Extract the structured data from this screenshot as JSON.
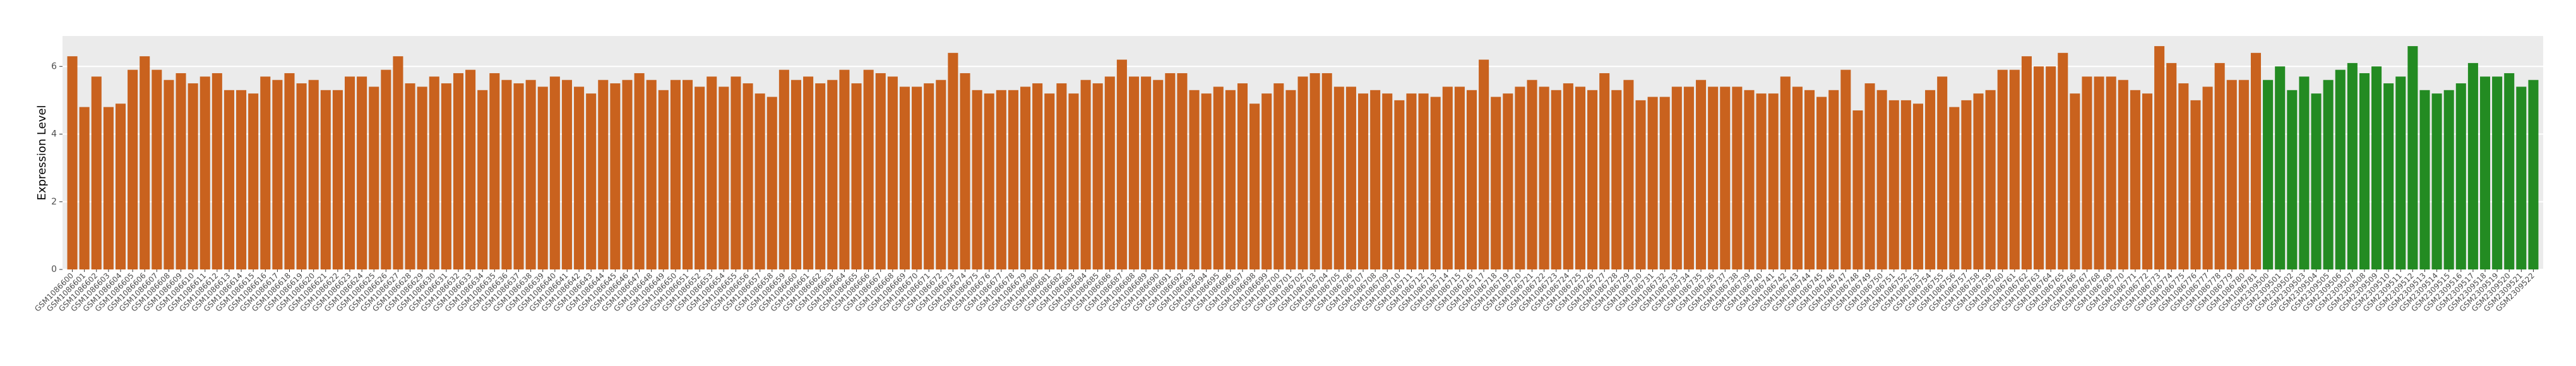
{
  "chart_data": {
    "type": "bar",
    "y_label": "Expression Level",
    "ylim": [
      0,
      6.9
    ],
    "yticks": [
      0,
      2,
      4,
      6
    ],
    "grid": true,
    "series": [
      {
        "color": "#c9621e",
        "categories": [
          "GSM1086600",
          "GSM1086601",
          "GSM1086602",
          "GSM1086603",
          "GSM1086604",
          "GSM1086605",
          "GSM1086606",
          "GSM1086607",
          "GSM1086608",
          "GSM1086609",
          "GSM1086610",
          "GSM1086611",
          "GSM1086612",
          "GSM1086613",
          "GSM1086614",
          "GSM1086615",
          "GSM1086616",
          "GSM1086617",
          "GSM1086618",
          "GSM1086619",
          "GSM1086620",
          "GSM1086621",
          "GSM1086622",
          "GSM1086623",
          "GSM1086624",
          "GSM1086625",
          "GSM1086626",
          "GSM1086627",
          "GSM1086628",
          "GSM1086629",
          "GSM1086630",
          "GSM1086631",
          "GSM1086632",
          "GSM1086633",
          "GSM1086634",
          "GSM1086635",
          "GSM1086636",
          "GSM1086637",
          "GSM1086638",
          "GSM1086639",
          "GSM1086640",
          "GSM1086641",
          "GSM1086642",
          "GSM1086643",
          "GSM1086644",
          "GSM1086645",
          "GSM1086646",
          "GSM1086647",
          "GSM1086648",
          "GSM1086649",
          "GSM1086650",
          "GSM1086651",
          "GSM1086652",
          "GSM1086653",
          "GSM1086654",
          "GSM1086655",
          "GSM1086656",
          "GSM1086657",
          "GSM1086658",
          "GSM1086659",
          "GSM1086660",
          "GSM1086661",
          "GSM1086662",
          "GSM1086663",
          "GSM1086664",
          "GSM1086665",
          "GSM1086666",
          "GSM1086667",
          "GSM1086668",
          "GSM1086669",
          "GSM1086670",
          "GSM1086671",
          "GSM1086672",
          "GSM1086673",
          "GSM1086674",
          "GSM1086675",
          "GSM1086676",
          "GSM1086677",
          "GSM1086678",
          "GSM1086679",
          "GSM1086680",
          "GSM1086681",
          "GSM1086682",
          "GSM1086683",
          "GSM1086684",
          "GSM1086685",
          "GSM1086686",
          "GSM1086687",
          "GSM1086688",
          "GSM1086689",
          "GSM1086690",
          "GSM1086691",
          "GSM1086692",
          "GSM1086693",
          "GSM1086694",
          "GSM1086695",
          "GSM1086696",
          "GSM1086697",
          "GSM1086698",
          "GSM1086699",
          "GSM1086700",
          "GSM1086701",
          "GSM1086702",
          "GSM1086703",
          "GSM1086704",
          "GSM1086705",
          "GSM1086706",
          "GSM1086707",
          "GSM1086708",
          "GSM1086709",
          "GSM1086710",
          "GSM1086711",
          "GSM1086712",
          "GSM1086713",
          "GSM1086714",
          "GSM1086715",
          "GSM1086716",
          "GSM1086717",
          "GSM1086718",
          "GSM1086719",
          "GSM1086720",
          "GSM1086721",
          "GSM1086722",
          "GSM1086723",
          "GSM1086724",
          "GSM1086725",
          "GSM1086726",
          "GSM1086727",
          "GSM1086728",
          "GSM1086729",
          "GSM1086730",
          "GSM1086731",
          "GSM1086732",
          "GSM1086733",
          "GSM1086734",
          "GSM1086735",
          "GSM1086736",
          "GSM1086737",
          "GSM1086738",
          "GSM1086739",
          "GSM1086740",
          "GSM1086741",
          "GSM1086742",
          "GSM1086743",
          "GSM1086744",
          "GSM1086745",
          "GSM1086746",
          "GSM1086747",
          "GSM1086748",
          "GSM1086749",
          "GSM1086750",
          "GSM1086751",
          "GSM1086752",
          "GSM1086753",
          "GSM1086754",
          "GSM1086755",
          "GSM1086756",
          "GSM1086757",
          "GSM1086758",
          "GSM1086759",
          "GSM1086760",
          "GSM1086761",
          "GSM1086762",
          "GSM1086763",
          "GSM1086764",
          "GSM1086765",
          "GSM1086766",
          "GSM1086767",
          "GSM1086768",
          "GSM1086769",
          "GSM1086770",
          "GSM1086771",
          "GSM1086772",
          "GSM1086773",
          "GSM1086774",
          "GSM1086775",
          "GSM1086776",
          "GSM1086777",
          "GSM1086778",
          "GSM1086779",
          "GSM1086780",
          "GSM1086781"
        ],
        "values": [
          6.3,
          4.8,
          5.7,
          4.8,
          4.9,
          5.9,
          6.3,
          5.9,
          5.6,
          5.8,
          5.5,
          5.7,
          5.8,
          5.3,
          5.3,
          5.2,
          5.7,
          5.6,
          5.8,
          5.5,
          5.6,
          5.3,
          5.3,
          5.7,
          5.7,
          5.4,
          5.9,
          6.3,
          5.5,
          5.4,
          5.7,
          5.5,
          5.8,
          5.9,
          5.3,
          5.8,
          5.6,
          5.5,
          5.6,
          5.4,
          5.7,
          5.6,
          5.4,
          5.2,
          5.6,
          5.5,
          5.6,
          5.8,
          5.6,
          5.3,
          5.6,
          5.6,
          5.4,
          5.7,
          5.4,
          5.7,
          5.5,
          5.2,
          5.1,
          5.9,
          5.6,
          5.7,
          5.5,
          5.6,
          5.9,
          5.5,
          5.9,
          5.8,
          5.7,
          5.4,
          5.4,
          5.5,
          5.6,
          6.4,
          5.8,
          5.3,
          5.2,
          5.3,
          5.3,
          5.4,
          5.5,
          5.2,
          5.5,
          5.2,
          5.6,
          5.5,
          5.7,
          6.2,
          5.7,
          5.7,
          5.6,
          5.8,
          5.8,
          5.3,
          5.2,
          5.4,
          5.3,
          5.5,
          4.9,
          5.2,
          5.5,
          5.3,
          5.7,
          5.8,
          5.8,
          5.4,
          5.4,
          5.2,
          5.3,
          5.2,
          5.0,
          5.2,
          5.2,
          5.1,
          5.4,
          5.4,
          5.3,
          6.2,
          5.1,
          5.2,
          5.4,
          5.6,
          5.4,
          5.3,
          5.5,
          5.4,
          5.3,
          5.8,
          5.3,
          5.6,
          5.0,
          5.1,
          5.1,
          5.4,
          5.4,
          5.6,
          5.4,
          5.4,
          5.4,
          5.3,
          5.2,
          5.2,
          5.7,
          5.4,
          5.3,
          5.1,
          5.3,
          5.9,
          4.7,
          5.5,
          5.3,
          5.0,
          5.0,
          4.9,
          5.3,
          5.7,
          4.8,
          5.0,
          5.2,
          5.3,
          5.9,
          5.9,
          6.3,
          6.0,
          6.0,
          6.4,
          5.2,
          5.7,
          5.7,
          5.7,
          5.6,
          5.3,
          5.2,
          6.6,
          6.1,
          5.5,
          5.0,
          5.4,
          6.1,
          5.6,
          5.6,
          6.4
        ]
      },
      {
        "color": "#238b22",
        "categories": [
          "GSM2309500",
          "GSM2309501",
          "GSM2309502",
          "GSM2309503",
          "GSM2309504",
          "GSM2309505",
          "GSM2309506",
          "GSM2309507",
          "GSM2309508",
          "GSM2309509",
          "GSM2309510",
          "GSM2309511",
          "GSM2309512",
          "GSM2309513",
          "GSM2309514",
          "GSM2309515",
          "GSM2309516",
          "GSM2309517",
          "GSM2309518",
          "GSM2309519",
          "GSM2309520",
          "GSM2309521",
          "GSM2309522"
        ],
        "values": [
          5.6,
          6.0,
          5.3,
          5.7,
          5.2,
          5.6,
          5.9,
          6.1,
          5.8,
          6.0,
          5.5,
          5.7,
          6.6,
          5.3,
          5.2,
          5.3,
          5.5,
          6.1,
          5.7,
          5.7,
          5.8,
          5.4,
          5.6
        ]
      }
    ]
  }
}
